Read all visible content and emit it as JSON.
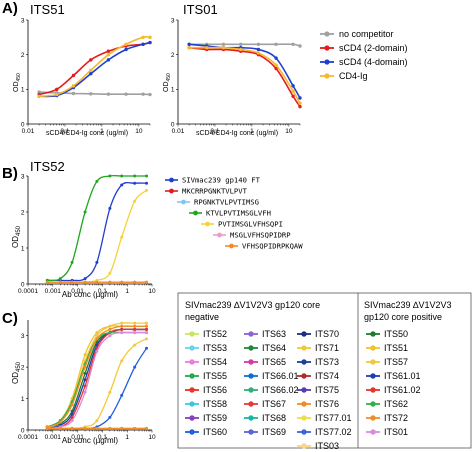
{
  "labels": {
    "A": "A)",
    "B": "B)",
    "C": "C)",
    "its51": "ITS51",
    "its01": "ITS01",
    "its52": "ITS52",
    "od_a": "OD",
    "od_a_sub": "450",
    "od_b": "OD",
    "od_b_sub": "450",
    "xlab_a1": "sCD4/CD4-Ig conc (ug/ml)",
    "xlab_a2": "sCD4/CD4-Ig conc (ug/ml)",
    "xlab_b": "Ab conc (µg/ml)",
    "xlab_c": "Ab conc (µg/ml)"
  },
  "legend_a": [
    {
      "label": "no competitor",
      "color": "#a0a0a0"
    },
    {
      "label": "sCD4 (2-domain)",
      "color": "#e41a1c"
    },
    {
      "label": "sCD4 (4-domain)",
      "color": "#1f3fd0"
    },
    {
      "label": "CD4-Ig",
      "color": "#f5b82e"
    }
  ],
  "legend_b": [
    {
      "label": "SIVmac239 gp140 FT",
      "color": "#1f3fd0",
      "indent": 0
    },
    {
      "label": "MKCRRPGNKTVLPVT",
      "color": "#e41a1c",
      "indent": 0
    },
    {
      "label": "RPGNKTVLPVTIMSG",
      "color": "#7fc8f0",
      "indent": 1
    },
    {
      "label": "KTVLPVTIMSGLVFH",
      "color": "#1fa81f",
      "indent": 2
    },
    {
      "label": "PVTIMSGLVFHSQPI",
      "color": "#f5d23a",
      "indent": 3
    },
    {
      "label": "MSGLVFHSQPIDRP",
      "color": "#f29ad0",
      "indent": 4
    },
    {
      "label": "VFHSQPIDRPKQAW",
      "color": "#f28c28",
      "indent": 5
    }
  ],
  "box_c": {
    "left_header_1": "SIVmac239 ∆V1V2V3 gp120 core",
    "left_header_2": "negative",
    "right_header_1": "SIVmac239 ∆V1V2V3",
    "right_header_2": "gp120 core positive",
    "neg_col1": [
      {
        "label": "ITS52",
        "color": "#c6e860"
      },
      {
        "label": "ITS53",
        "color": "#6fd0f0"
      },
      {
        "label": "ITS54",
        "color": "#f07ad8"
      },
      {
        "label": "ITS55",
        "color": "#1fae4a"
      },
      {
        "label": "ITS56",
        "color": "#e8342a"
      },
      {
        "label": "ITS58",
        "color": "#3ac6e6"
      },
      {
        "label": "ITS59",
        "color": "#8b3dbf"
      },
      {
        "label": "ITS60",
        "color": "#1f5fe0"
      }
    ],
    "neg_col2": [
      {
        "label": "ITS63",
        "color": "#8b63d8"
      },
      {
        "label": "ITS64",
        "color": "#1f8a3a"
      },
      {
        "label": "ITS65",
        "color": "#d43aa8"
      },
      {
        "label": "ITS66.01",
        "color": "#0f6fd0"
      },
      {
        "label": "ITS66.02",
        "color": "#2fb07a"
      },
      {
        "label": "ITS67",
        "color": "#e83a3a"
      },
      {
        "label": "ITS68",
        "color": "#16b8a8"
      },
      {
        "label": "ITS69",
        "color": "#5a64d8"
      }
    ],
    "neg_col3": [
      {
        "label": "ITS70",
        "color": "#1f2f80"
      },
      {
        "label": "ITS71",
        "color": "#f5c73a"
      },
      {
        "label": "ITS73",
        "color": "#1f3fa0"
      },
      {
        "label": "ITS74",
        "color": "#b02a2a"
      },
      {
        "label": "ITS75",
        "color": "#5a3ab0"
      },
      {
        "label": "ITS76",
        "color": "#f28c28"
      },
      {
        "label": "ITS77.01",
        "color": "#e8e048"
      },
      {
        "label": "ITS77.02",
        "color": "#3a64d8"
      },
      {
        "label": "ITS03",
        "color": "#f7d68a"
      }
    ],
    "pos": [
      {
        "label": "ITS50",
        "color": "#1f7a2f"
      },
      {
        "label": "ITS51",
        "color": "#f5c030"
      },
      {
        "label": "ITS57",
        "color": "#f2c83a"
      },
      {
        "label": "ITS61.01",
        "color": "#1f3fb0"
      },
      {
        "label": "ITS61.02",
        "color": "#e8342a"
      },
      {
        "label": "ITS62",
        "color": "#2fb04a"
      },
      {
        "label": "ITS72",
        "color": "#f28c28"
      },
      {
        "label": "ITS01",
        "color": "#d88ae0"
      }
    ]
  },
  "chart_data": [
    {
      "type": "line",
      "title": "ITS51",
      "xscale": "log",
      "xlim": [
        0.01,
        20
      ],
      "ylim": [
        0,
        3
      ],
      "xticks": [
        "0.01",
        "0.1",
        "1",
        "10"
      ],
      "yticks": [
        "0",
        "1",
        "2",
        "3"
      ],
      "xlabel": "sCD4/CD4-Ig conc (ug/ml)",
      "ylabel": "OD450",
      "x": [
        0.02,
        0.06,
        0.17,
        0.5,
        1.5,
        4.5,
        13,
        20
      ],
      "series": [
        {
          "name": "no competitor",
          "color": "#a0a0a0",
          "values": [
            0.92,
            0.9,
            0.88,
            0.87,
            0.86,
            0.86,
            0.86,
            0.85
          ]
        },
        {
          "name": "sCD4 (2-domain)",
          "color": "#e41a1c",
          "values": [
            0.85,
            1.0,
            1.4,
            1.85,
            2.1,
            2.25,
            2.3,
            2.35
          ]
        },
        {
          "name": "sCD4 (4-domain)",
          "color": "#1f3fd0",
          "values": [
            0.8,
            0.82,
            1.05,
            1.45,
            1.85,
            2.15,
            2.3,
            2.35
          ]
        },
        {
          "name": "CD4-Ig",
          "color": "#f5b82e",
          "values": [
            0.8,
            0.85,
            1.1,
            1.55,
            2.0,
            2.3,
            2.5,
            2.5
          ]
        }
      ]
    },
    {
      "type": "line",
      "title": "ITS01",
      "xscale": "log",
      "xlim": [
        0.01,
        20
      ],
      "ylim": [
        0,
        3
      ],
      "xticks": [
        "0.01",
        "0.1",
        "1",
        "10"
      ],
      "yticks": [
        "0",
        "1",
        "2",
        "3"
      ],
      "xlabel": "sCD4/CD4-Ig conc (ug/ml)",
      "ylabel": "",
      "x": [
        0.02,
        0.06,
        0.17,
        0.5,
        1.5,
        4.5,
        13,
        20
      ],
      "series": [
        {
          "name": "no competitor",
          "color": "#a0a0a0",
          "values": [
            2.3,
            2.3,
            2.3,
            2.3,
            2.3,
            2.3,
            2.3,
            2.25
          ]
        },
        {
          "name": "sCD4 (2-domain)",
          "color": "#e41a1c",
          "values": [
            2.2,
            2.15,
            2.15,
            2.1,
            2.0,
            1.6,
            0.8,
            0.5
          ]
        },
        {
          "name": "sCD4 (4-domain)",
          "color": "#1f3fd0",
          "values": [
            2.3,
            2.25,
            2.2,
            2.2,
            2.15,
            1.9,
            1.1,
            0.75
          ]
        },
        {
          "name": "CD4-Ig",
          "color": "#f5b82e",
          "values": [
            2.2,
            2.2,
            2.2,
            2.15,
            2.05,
            1.7,
            0.95,
            0.6
          ]
        }
      ]
    },
    {
      "type": "line",
      "title": "ITS52",
      "xscale": "log",
      "xlim": [
        0.0001,
        10
      ],
      "ylim": [
        0,
        3
      ],
      "xticks": [
        "0.0001",
        "0.001",
        "0.01",
        "0.1",
        "1",
        "10"
      ],
      "yticks": [
        "0",
        "1",
        "2",
        "3"
      ],
      "xlabel": "Ab conc (µg/ml)",
      "ylabel": "OD450",
      "x": [
        0.0006,
        0.002,
        0.006,
        0.02,
        0.06,
        0.2,
        0.6,
        2,
        6
      ],
      "series": [
        {
          "name": "SIVmac239 gp140 FT",
          "color": "#1f3fd0",
          "values": [
            0.1,
            0.1,
            0.1,
            0.15,
            0.6,
            2.1,
            2.75,
            2.8,
            2.8
          ]
        },
        {
          "name": "MKCRRPGNKTVLPVT",
          "color": "#e41a1c",
          "values": [
            0.05,
            0.05,
            0.05,
            0.05,
            0.05,
            0.05,
            0.05,
            0.05,
            0.05
          ]
        },
        {
          "name": "RPGNKTVLPVTIMSG",
          "color": "#7fc8f0",
          "values": [
            0.05,
            0.05,
            0.05,
            0.05,
            0.05,
            0.05,
            0.05,
            0.05,
            0.05
          ]
        },
        {
          "name": "KTVLPVTIMSGLVFH",
          "color": "#1fa81f",
          "values": [
            0.1,
            0.15,
            0.6,
            2.0,
            2.85,
            3.0,
            3.0,
            3.0,
            3.0
          ]
        },
        {
          "name": "PVTIMSGLVFHSQPI",
          "color": "#f5d23a",
          "values": [
            0.05,
            0.05,
            0.05,
            0.05,
            0.1,
            0.3,
            1.3,
            2.3,
            2.6
          ]
        },
        {
          "name": "MSGLVFHSQPIDRP",
          "color": "#f29ad0",
          "values": [
            0.05,
            0.05,
            0.05,
            0.05,
            0.05,
            0.05,
            0.05,
            0.05,
            0.05
          ]
        },
        {
          "name": "VFHSQPIDRPKQAW",
          "color": "#f28c28",
          "values": [
            0.05,
            0.05,
            0.05,
            0.05,
            0.05,
            0.05,
            0.05,
            0.05,
            0.05
          ]
        }
      ]
    },
    {
      "type": "line",
      "title": "",
      "xscale": "log",
      "xlim": [
        0.0001,
        10
      ],
      "ylim": [
        0,
        3.5
      ],
      "xticks": [
        "0.0001",
        "0.001",
        "0.01",
        "0.1",
        "1",
        "10"
      ],
      "yticks": [
        "0",
        "1",
        "2",
        "3"
      ],
      "xlabel": "Ab conc (µg/ml)",
      "ylabel": "OD450",
      "x": [
        0.0006,
        0.002,
        0.006,
        0.02,
        0.06,
        0.2,
        0.6,
        2,
        6
      ],
      "series": [
        {
          "name": "ITS50",
          "color": "#1f7a2f",
          "values": [
            0.1,
            0.2,
            0.6,
            1.8,
            2.8,
            3.1,
            3.2,
            3.2,
            3.2
          ]
        },
        {
          "name": "ITS51",
          "color": "#f5c030",
          "values": [
            0.1,
            0.3,
            1.0,
            2.4,
            3.1,
            3.3,
            3.3,
            3.3,
            3.3
          ]
        },
        {
          "name": "ITS57",
          "color": "#f2c83a",
          "values": [
            0.1,
            0.25,
            0.9,
            2.2,
            3.0,
            3.3,
            3.4,
            3.4,
            3.4
          ]
        },
        {
          "name": "ITS61.01",
          "color": "#1f3fb0",
          "values": [
            0.05,
            0.15,
            0.5,
            1.6,
            2.7,
            3.1,
            3.2,
            3.2,
            3.2
          ]
        },
        {
          "name": "ITS61.02",
          "color": "#e8342a",
          "values": [
            0.05,
            0.1,
            0.4,
            1.4,
            2.6,
            3.1,
            3.2,
            3.2,
            3.2
          ]
        },
        {
          "name": "ITS62",
          "color": "#2fb04a",
          "values": [
            0.1,
            0.3,
            0.9,
            2.1,
            2.9,
            3.1,
            3.1,
            3.1,
            3.1
          ]
        },
        {
          "name": "ITS72",
          "color": "#f28c28",
          "values": [
            0.1,
            0.25,
            0.8,
            2.0,
            2.9,
            3.2,
            3.3,
            3.3,
            3.3
          ]
        },
        {
          "name": "ITS01",
          "color": "#d88ae0",
          "values": [
            0.05,
            0.1,
            0.3,
            1.2,
            2.5,
            3.0,
            3.1,
            3.1,
            3.1
          ]
        },
        {
          "name": "ITS60",
          "color": "#1f5fe0",
          "values": [
            0.05,
            0.05,
            0.05,
            0.05,
            0.1,
            0.4,
            1.1,
            2.0,
            2.6
          ]
        },
        {
          "name": "ITS71",
          "color": "#f5c73a",
          "values": [
            0.05,
            0.05,
            0.05,
            0.1,
            0.3,
            1.2,
            2.2,
            2.7,
            2.9
          ]
        },
        {
          "name": "ITS52",
          "color": "#c6e860",
          "values": [
            0.05,
            0.05,
            0.05,
            0.05,
            0.05,
            0.05,
            0.05,
            0.05,
            0.05
          ]
        },
        {
          "name": "ITS76",
          "color": "#f28c28",
          "values": [
            0.05,
            0.05,
            0.05,
            0.05,
            0.05,
            0.05,
            0.05,
            0.05,
            0.05
          ]
        }
      ]
    }
  ]
}
